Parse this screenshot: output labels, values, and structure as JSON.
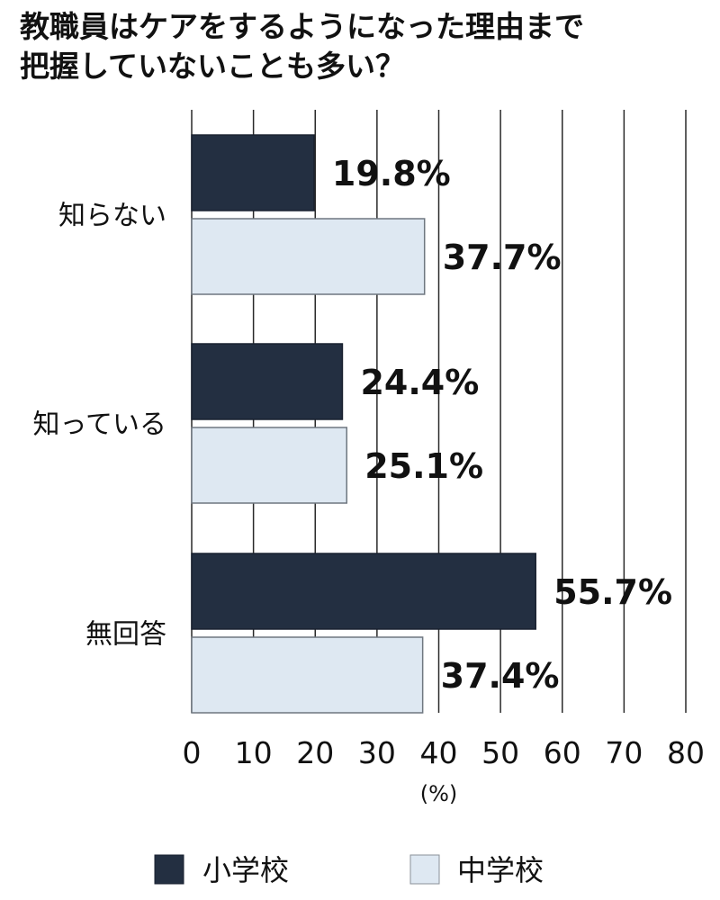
{
  "title_lines": [
    "教職員はケアをするようになった理由まで",
    "把握していないことも多い？"
  ],
  "chart_data": {
    "type": "bar",
    "orientation": "horizontal",
    "categories": [
      "知らない",
      "知っている",
      "無回答"
    ],
    "series": [
      {
        "name": "小学校",
        "values": [
          19.8,
          24.4,
          55.7
        ],
        "labels": [
          "19.8%",
          "24.4%",
          "55.7%"
        ],
        "color": "#232f41"
      },
      {
        "name": "中学校",
        "values": [
          37.7,
          25.1,
          37.4
        ],
        "labels": [
          "37.7%",
          "25.1%",
          "37.4%"
        ],
        "color": "#dee8f2"
      }
    ],
    "xlim": [
      0,
      80
    ],
    "xticks": [
      0,
      10,
      20,
      30,
      40,
      50,
      60,
      70,
      80
    ],
    "xlabel": "(%)",
    "grid": true,
    "legend": "bottom"
  }
}
